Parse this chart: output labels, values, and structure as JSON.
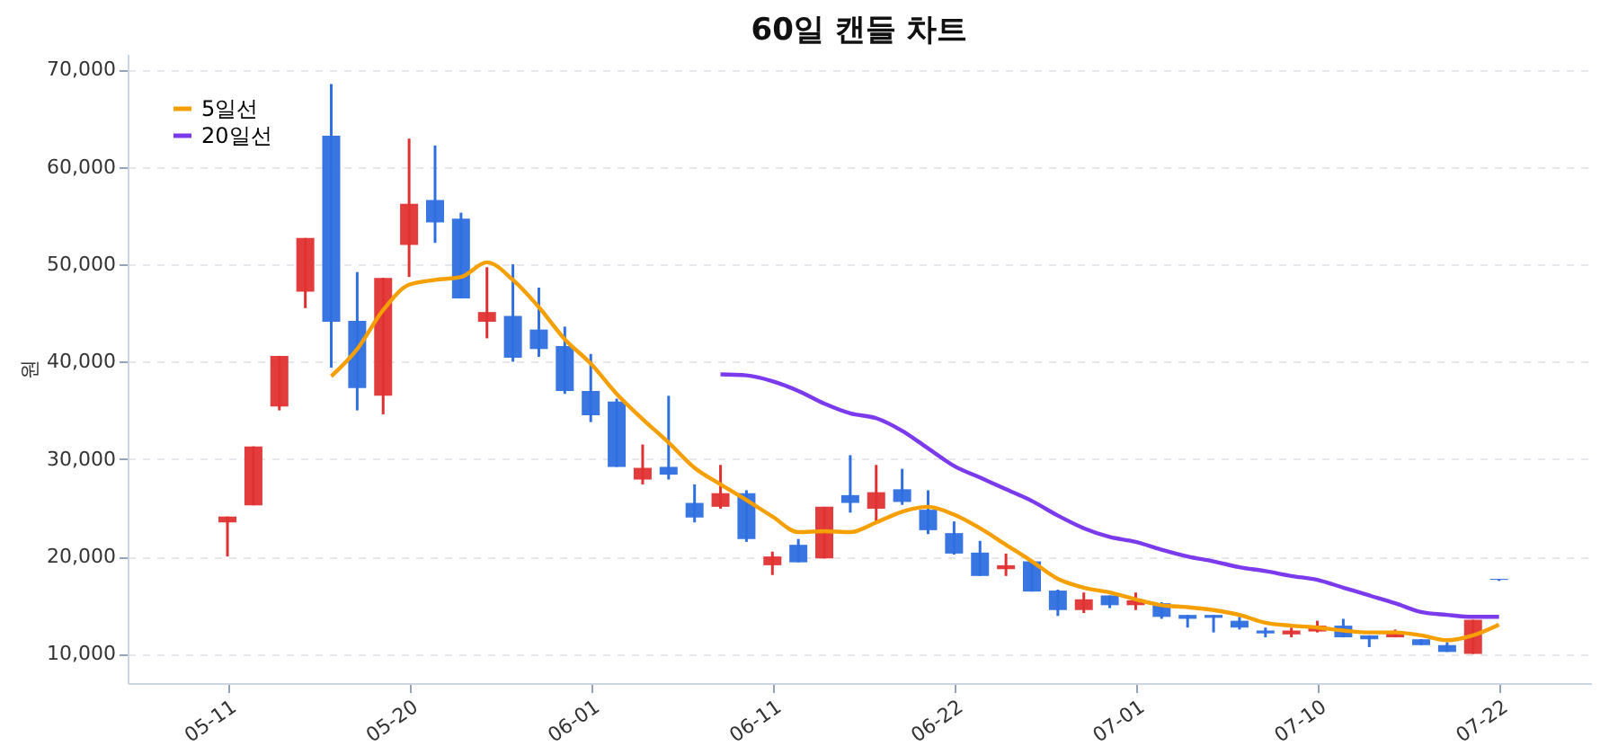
{
  "chart_data": {
    "type": "candlestick",
    "title": "60일 캔들 차트",
    "ylabel": "원",
    "categories": [
      "05-11",
      null,
      null,
      null,
      null,
      null,
      null,
      "05-20",
      null,
      null,
      null,
      null,
      null,
      null,
      "06-01",
      null,
      null,
      null,
      null,
      null,
      null,
      "06-11",
      null,
      null,
      null,
      null,
      null,
      null,
      "06-22",
      null,
      null,
      null,
      null,
      null,
      null,
      "07-01",
      null,
      null,
      null,
      null,
      null,
      null,
      "07-10",
      null,
      null,
      null,
      null,
      null,
      null,
      "07-22"
    ],
    "ohlc": [
      [
        23500,
        24100,
        20000,
        24100
      ],
      [
        25250,
        31300,
        25250,
        31300
      ],
      [
        35400,
        40600,
        35000,
        40600
      ],
      [
        47200,
        52700,
        45500,
        52700
      ],
      [
        63200,
        68500,
        39400,
        44100
      ],
      [
        44200,
        49200,
        35000,
        37300
      ],
      [
        36500,
        48600,
        34600,
        48600
      ],
      [
        52000,
        62900,
        48700,
        56200
      ],
      [
        56600,
        62200,
        52200,
        54300
      ],
      [
        54700,
        55300,
        46500,
        46500
      ],
      [
        44100,
        49700,
        42400,
        45100
      ],
      [
        44700,
        50000,
        40000,
        40400
      ],
      [
        43300,
        47600,
        40500,
        41300
      ],
      [
        41600,
        43600,
        36700,
        37000
      ],
      [
        37000,
        40800,
        33800,
        34500
      ],
      [
        35900,
        36200,
        29200,
        29200
      ],
      [
        27900,
        31500,
        27400,
        29100
      ],
      [
        29200,
        36500,
        27900,
        28400
      ],
      [
        25500,
        27400,
        23500,
        24000
      ],
      [
        25100,
        29400,
        24900,
        26500
      ],
      [
        26500,
        26800,
        21500,
        21800
      ],
      [
        19100,
        20500,
        18100,
        20000
      ],
      [
        21200,
        21800,
        19400,
        19400
      ],
      [
        19800,
        25100,
        19800,
        25100
      ],
      [
        26300,
        30400,
        24500,
        25500
      ],
      [
        24900,
        29400,
        23600,
        26600
      ],
      [
        26900,
        29000,
        25300,
        25600
      ],
      [
        24800,
        26800,
        22300,
        22700
      ],
      [
        22400,
        23600,
        20200,
        20300
      ],
      [
        20400,
        21600,
        18000,
        18000
      ],
      [
        18700,
        20300,
        18000,
        19100
      ],
      [
        19500,
        19600,
        16400,
        16400
      ],
      [
        16500,
        16600,
        13900,
        14500
      ],
      [
        14500,
        16300,
        14200,
        15600
      ],
      [
        16000,
        16000,
        14700,
        15000
      ],
      [
        15000,
        16300,
        14500,
        15500
      ],
      [
        15200,
        15300,
        13600,
        13800
      ],
      [
        14000,
        14000,
        12700,
        13600
      ],
      [
        14000,
        14000,
        12200,
        13700
      ],
      [
        13400,
        13800,
        12500,
        12700
      ],
      [
        12400,
        12700,
        11700,
        12100
      ],
      [
        12000,
        12700,
        11700,
        12400
      ],
      [
        12300,
        13400,
        12200,
        12900
      ],
      [
        12900,
        13600,
        11700,
        11700
      ],
      [
        11900,
        11900,
        10700,
        11500
      ],
      [
        11700,
        12500,
        11700,
        12200
      ],
      [
        11500,
        11500,
        10900,
        10900
      ],
      [
        10900,
        11200,
        10200,
        10200
      ],
      [
        10000,
        13500,
        10000,
        13500
      ],
      [
        17700,
        17700,
        17500,
        17600
      ]
    ],
    "colors": [
      "#e03131",
      "#e03131",
      "#e03131",
      "#e03131",
      "#2f6fe0",
      "#2f6fe0",
      "#e03131",
      "#e03131",
      "#2f6fe0",
      "#2f6fe0",
      "#e03131",
      "#2f6fe0",
      "#2f6fe0",
      "#2f6fe0",
      "#2f6fe0",
      "#2f6fe0",
      "#e03131",
      "#2f6fe0",
      "#2f6fe0",
      "#e03131",
      "#2f6fe0",
      "#e03131",
      "#2f6fe0",
      "#e03131",
      "#2f6fe0",
      "#e03131",
      "#2f6fe0",
      "#2f6fe0",
      "#2f6fe0",
      "#2f6fe0",
      "#e03131",
      "#2f6fe0",
      "#2f6fe0",
      "#e03131",
      "#2f6fe0",
      "#e03131",
      "#2f6fe0",
      "#2f6fe0",
      "#2f6fe0",
      "#2f6fe0",
      "#2f6fe0",
      "#e03131",
      "#e03131",
      "#2f6fe0",
      "#2f6fe0",
      "#e03131",
      "#2f6fe0",
      "#2f6fe0",
      "#e03131",
      "#2f6fe0"
    ],
    "series": [
      {
        "name": "5일선",
        "type": "line",
        "color": "#f59f00",
        "values": [
          null,
          null,
          null,
          null,
          38500,
          41300,
          45300,
          47900,
          48400,
          48700,
          50200,
          48400,
          45600,
          42300,
          39800,
          36700,
          34100,
          31700,
          29100,
          27400,
          25800,
          24100,
          22500,
          22600,
          22500,
          23500,
          24600,
          25100,
          24300,
          22900,
          21200,
          19500,
          17700,
          16800,
          16300,
          15600,
          15000,
          14800,
          14500,
          14000,
          13200,
          12900,
          12700,
          12400,
          12200,
          12200,
          11900,
          11400,
          11900,
          13000
        ]
      },
      {
        "name": "20일선",
        "type": "line",
        "color": "#7c3aed",
        "values": [
          null,
          null,
          null,
          null,
          null,
          null,
          null,
          null,
          null,
          null,
          null,
          null,
          null,
          null,
          null,
          null,
          null,
          null,
          null,
          38700,
          38600,
          38000,
          37000,
          35700,
          34700,
          34200,
          32900,
          31100,
          29300,
          28100,
          26900,
          25700,
          24200,
          22900,
          22000,
          21500,
          20700,
          20000,
          19500,
          18900,
          18500,
          18000,
          17600,
          16800,
          16000,
          15200,
          14300,
          14000,
          13800,
          13800
        ]
      }
    ],
    "ylim": [
      7000,
      71600
    ],
    "yticks": [
      {
        "value": 10000,
        "label": "10,000"
      },
      {
        "value": 20000,
        "label": "20,000"
      },
      {
        "value": 30000,
        "label": "30,000"
      },
      {
        "value": 40000,
        "label": "40,000"
      },
      {
        "value": 50000,
        "label": "50,000"
      },
      {
        "value": 60000,
        "label": "60,000"
      },
      {
        "value": 70000,
        "label": "70,000"
      }
    ],
    "grid": "y",
    "legend": "top left"
  }
}
